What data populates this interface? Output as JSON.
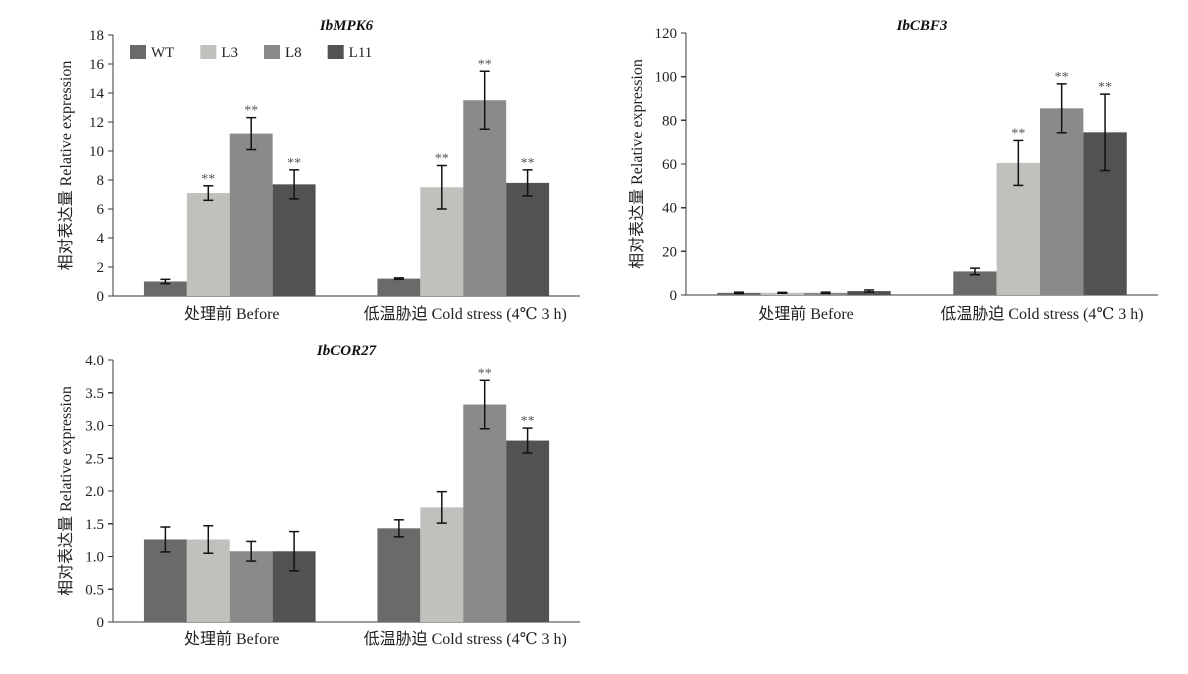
{
  "chart_data": [
    {
      "type": "bar",
      "title": "IbMPK6",
      "xlabel": "",
      "ylabel": "相对表达量 Relative expression",
      "categories": [
        "处理前 Before",
        "低温胁迫 Cold stress (4℃ 3 h)"
      ],
      "ylim": [
        0,
        18
      ],
      "yticks": [
        0,
        2,
        4,
        6,
        8,
        10,
        12,
        14,
        16,
        18
      ],
      "ytick_labels": [
        "0",
        "2",
        "4",
        "6",
        "8",
        "10",
        "12",
        "14",
        "16",
        "18"
      ],
      "grid": false,
      "legend": "top-left",
      "series": [
        {
          "name": "WT",
          "color": "#6a6a68",
          "values": [
            1.0,
            1.2
          ],
          "errors": [
            0.15,
            0.05
          ],
          "significance": [
            "",
            ""
          ]
        },
        {
          "name": "L3",
          "color": "#c0c0bc",
          "values": [
            7.1,
            7.5
          ],
          "errors": [
            0.5,
            1.5
          ],
          "significance": [
            "**",
            "**"
          ]
        },
        {
          "name": "L8",
          "color": "#8a8a88",
          "values": [
            11.2,
            13.5
          ],
          "errors": [
            1.1,
            2.0
          ],
          "significance": [
            "**",
            "**"
          ]
        },
        {
          "name": "L11",
          "color": "#525252",
          "values": [
            7.7,
            7.8
          ],
          "errors": [
            1.0,
            0.9
          ],
          "significance": [
            "**",
            "**"
          ]
        }
      ]
    },
    {
      "type": "bar",
      "title": "IbCBF3",
      "xlabel": "",
      "ylabel": "相对表达量 Relative expression",
      "categories": [
        "处理前 Before",
        "低温胁迫 Cold stress (4℃ 3 h)"
      ],
      "ylim": [
        0,
        120
      ],
      "yticks": [
        0,
        20,
        40,
        60,
        80,
        100,
        120
      ],
      "ytick_labels": [
        "0",
        "20",
        "40",
        "60",
        "80",
        "100",
        "120"
      ],
      "grid": false,
      "series": [
        {
          "color": "#6a6a68",
          "values": [
            1.0,
            10.8
          ],
          "errors": [
            0.3,
            1.5
          ],
          "significance": [
            "",
            ""
          ]
        },
        {
          "color": "#c0c0bc",
          "values": [
            1.0,
            60.5
          ],
          "errors": [
            0.2,
            10.3
          ],
          "significance": [
            "",
            "**"
          ]
        },
        {
          "color": "#8a8a88",
          "values": [
            1.0,
            85.5
          ],
          "errors": [
            0.3,
            11.2
          ],
          "significance": [
            "",
            "**"
          ]
        },
        {
          "color": "#525252",
          "values": [
            1.8,
            74.5
          ],
          "errors": [
            0.5,
            17.5
          ],
          "significance": [
            "",
            "**"
          ]
        }
      ]
    },
    {
      "type": "bar",
      "title": "IbCOR27",
      "xlabel": "",
      "ylabel": "相对表达量 Relative expression",
      "categories": [
        "处理前 Before",
        "低温胁迫 Cold stress (4℃ 3 h)"
      ],
      "ylim": [
        0,
        4.0
      ],
      "yticks": [
        0,
        0.5,
        1.0,
        1.5,
        2.0,
        2.5,
        3.0,
        3.5,
        4.0
      ],
      "ytick_labels": [
        "0",
        "0.5",
        "1.0",
        "1.5",
        "2.0",
        "2.5",
        "3.0",
        "3.5",
        "4.0"
      ],
      "grid": false,
      "series": [
        {
          "color": "#6a6a68",
          "values": [
            1.26,
            1.43
          ],
          "errors": [
            0.19,
            0.13
          ],
          "significance": [
            "",
            ""
          ]
        },
        {
          "color": "#c0c0bc",
          "values": [
            1.26,
            1.75
          ],
          "errors": [
            0.21,
            0.24
          ],
          "significance": [
            "",
            ""
          ]
        },
        {
          "color": "#8a8a88",
          "values": [
            1.08,
            3.32
          ],
          "errors": [
            0.15,
            0.37
          ],
          "significance": [
            "",
            "**"
          ]
        },
        {
          "color": "#525252",
          "values": [
            1.08,
            2.77
          ],
          "errors": [
            0.3,
            0.19
          ],
          "significance": [
            "",
            "**"
          ]
        }
      ]
    }
  ]
}
